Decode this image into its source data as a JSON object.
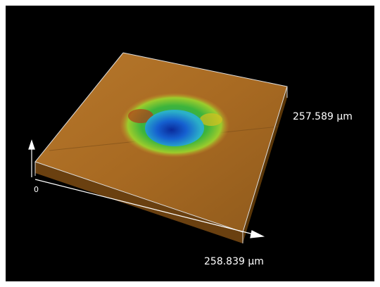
{
  "labels": {
    "y_extent": "257.589 µm",
    "x_extent": "258.839 µm",
    "origin": "0"
  }
}
